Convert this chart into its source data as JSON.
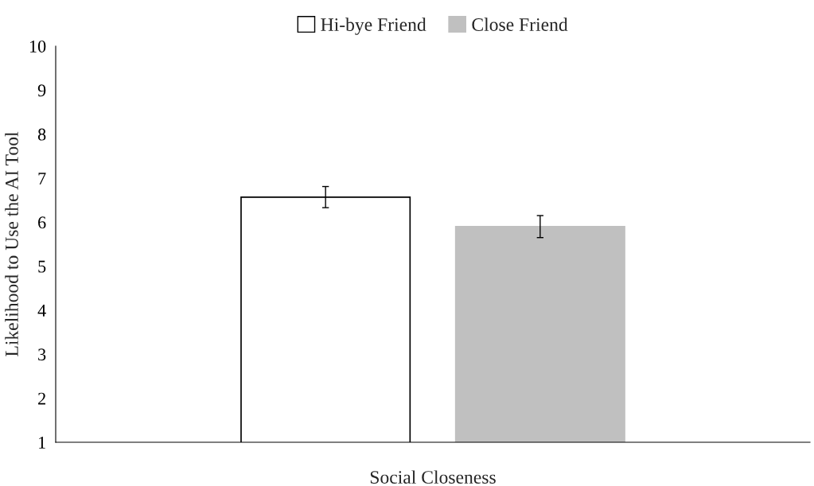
{
  "chart_data": {
    "type": "bar",
    "xlabel": "Social Closeness",
    "ylabel": "Likelihood to Use the AI Tool",
    "categories": [
      null
    ],
    "series": [
      {
        "name": "Hi-bye Friend",
        "color": "#ffffff",
        "values": [
          6.57
        ],
        "errors": [
          0.24
        ]
      },
      {
        "name": "Close Friend",
        "color": "#c0c0c0",
        "values": [
          5.9
        ],
        "errors": [
          0.25
        ]
      }
    ],
    "ylim": [
      1,
      10
    ],
    "yticks": [
      1,
      2,
      3,
      4,
      5,
      6,
      7,
      8,
      9,
      10
    ],
    "grid": false,
    "legend": "top"
  }
}
